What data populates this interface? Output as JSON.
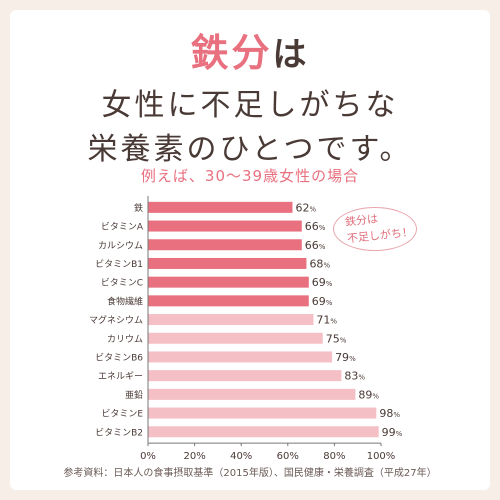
{
  "headline": {
    "line1_accent": "鉄分",
    "line1_rest": "は",
    "line2": "女性に不足しがちな",
    "line3": "栄養素のひとつです。"
  },
  "subtitle": "例えば、30～39歳女性の場合",
  "callout": {
    "line1": "鉄分は",
    "line2": "不足しがち！"
  },
  "source": "参考資料：日本人の食事摂取基準（2015年版）、国民健康・栄養調査（平成27年）",
  "colors": {
    "strong": "#e8707f",
    "light": "#f5bfc6",
    "axis": "#777777",
    "text": "#4a3a36"
  },
  "chart_data": {
    "type": "bar",
    "orientation": "horizontal",
    "categories": [
      "鉄",
      "ビタミンA",
      "カルシウム",
      "ビタミンB1",
      "ビタミンC",
      "食物繊維",
      "マグネシウム",
      "カリウム",
      "ビタミンB6",
      "エネルギー",
      "亜鉛",
      "ビタミンE",
      "ビタミンB2"
    ],
    "values": [
      62,
      66,
      66,
      68,
      69,
      69,
      71,
      75,
      79,
      83,
      89,
      98,
      99
    ],
    "highlight": [
      true,
      true,
      true,
      true,
      true,
      true,
      false,
      false,
      false,
      false,
      false,
      false,
      false
    ],
    "value_suffix": "%",
    "xlim": [
      0,
      100
    ],
    "xticks": [
      "0%",
      "20%",
      "40%",
      "60%",
      "80%",
      "100%"
    ],
    "grid": false
  }
}
